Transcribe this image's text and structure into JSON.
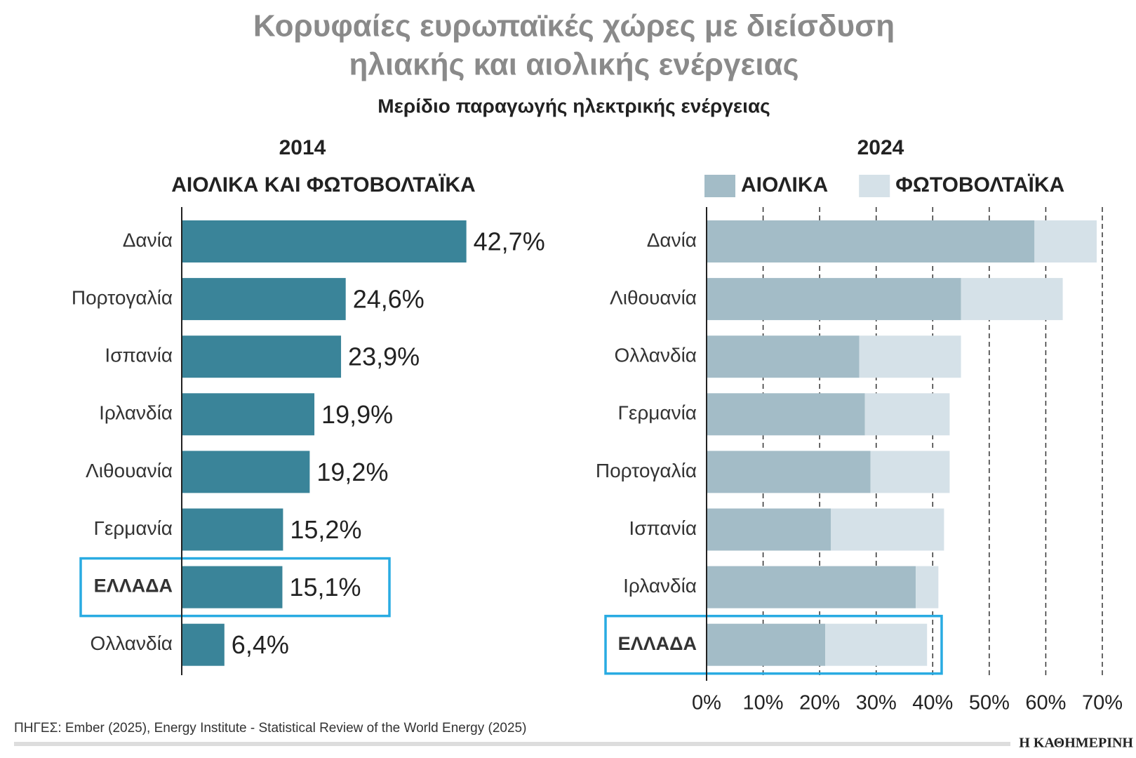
{
  "title": [
    "Κορυφαίες ευρωπαϊκές χώρες με διείσδυση",
    "ηλιακής και αιολικής ενέργειας"
  ],
  "subtitle": "Μερίδιο παραγωγής ηλεκτρικής ενέργειας",
  "source": "ΠΗΓΕΣ: Ember (2025), Energy Institute - Statistical Review of the World Energy (2025)",
  "brand": "Η ΚΑΘΗΜΕΡΙΝΗ",
  "chart_data": [
    {
      "type": "bar",
      "orientation": "horizontal",
      "title": "2014",
      "subtitle": "ΑΙΟΛΙΚΑ ΚΑΙ ΦΩΤΟΒΟΛΤΑΪΚΑ",
      "categories": [
        "Δανία",
        "Πορτογαλία",
        "Ισπανία",
        "Ιρλανδία",
        "Λιθουανία",
        "Γερμανία",
        "ΕΛΛΑΔΑ",
        "Ολλανδία"
      ],
      "values": [
        42.7,
        24.6,
        23.9,
        19.9,
        19.2,
        15.2,
        15.1,
        6.4
      ],
      "value_labels": [
        "42,7%",
        "24,6%",
        "23,9%",
        "19,9%",
        "19,2%",
        "15,2%",
        "15,1%",
        "6,4%"
      ],
      "color": "#3a8499",
      "highlight": {
        "index": 6,
        "color": "#29abe2"
      }
    },
    {
      "type": "bar",
      "orientation": "horizontal",
      "stacked": true,
      "title": "2024",
      "categories": [
        "Δανία",
        "Λιθουανία",
        "Ολλανδία",
        "Γερμανία",
        "Πορτογαλία",
        "Ισπανία",
        "Ιρλανδία",
        "ΕΛΛΑΔΑ"
      ],
      "series": [
        {
          "name": "ΑΙΟΛΙΚΑ",
          "color": "#a3bcc7",
          "values": [
            58,
            45,
            27,
            28,
            29,
            22,
            37,
            21
          ]
        },
        {
          "name": "ΦΩΤΟΒΟΛΤΑΪΚΑ",
          "color": "#d5e1e8",
          "values": [
            11,
            18,
            18,
            15,
            14,
            20,
            4,
            18
          ]
        }
      ],
      "xlim": [
        0,
        70
      ],
      "xticks": [
        {
          "value": 0,
          "label": "0%"
        },
        {
          "value": 10,
          "label": "10%"
        },
        {
          "value": 20,
          "label": "20%"
        },
        {
          "value": 30,
          "label": "30%"
        },
        {
          "value": 40,
          "label": "40%"
        },
        {
          "value": 50,
          "label": "50%"
        },
        {
          "value": 60,
          "label": "60%"
        },
        {
          "value": 70,
          "label": "70%"
        }
      ],
      "grid": true,
      "legend": "top",
      "highlight": {
        "index": 7,
        "color": "#29abe2"
      }
    }
  ]
}
